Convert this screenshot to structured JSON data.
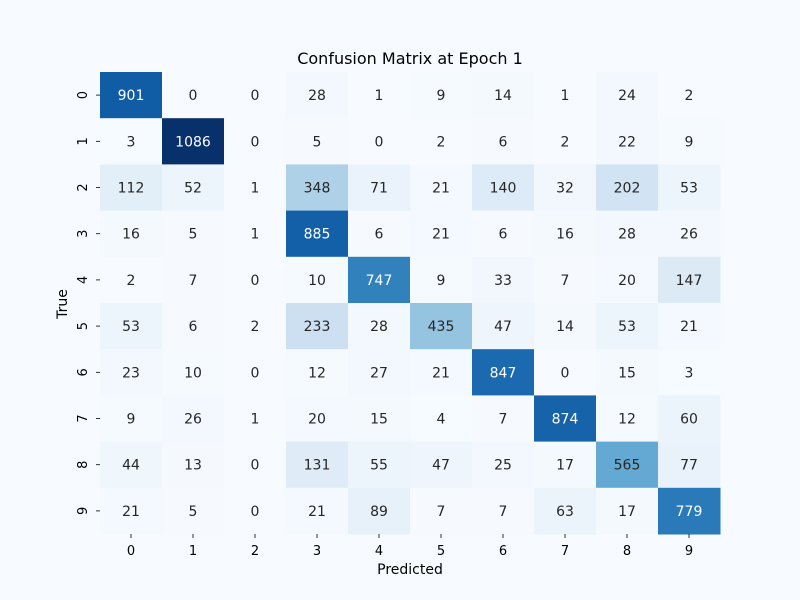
{
  "chart_data": {
    "type": "heatmap",
    "title": "Confusion Matrix at Epoch 1",
    "xlabel": "Predicted",
    "ylabel": "True",
    "x_categories": [
      "0",
      "1",
      "2",
      "3",
      "4",
      "5",
      "6",
      "7",
      "8",
      "9"
    ],
    "y_categories": [
      "0",
      "1",
      "2",
      "3",
      "4",
      "5",
      "6",
      "7",
      "8",
      "9"
    ],
    "values": [
      [
        901,
        0,
        0,
        28,
        1,
        9,
        14,
        1,
        24,
        2
      ],
      [
        3,
        1086,
        0,
        5,
        0,
        2,
        6,
        2,
        22,
        9
      ],
      [
        112,
        52,
        1,
        348,
        71,
        21,
        140,
        32,
        202,
        53
      ],
      [
        16,
        5,
        1,
        885,
        6,
        21,
        6,
        16,
        28,
        26
      ],
      [
        2,
        7,
        0,
        10,
        747,
        9,
        33,
        7,
        20,
        147
      ],
      [
        53,
        6,
        2,
        233,
        28,
        435,
        47,
        14,
        53,
        21
      ],
      [
        23,
        10,
        0,
        12,
        27,
        21,
        847,
        0,
        15,
        3
      ],
      [
        9,
        26,
        1,
        20,
        15,
        4,
        7,
        874,
        12,
        60
      ],
      [
        44,
        13,
        0,
        131,
        55,
        47,
        25,
        17,
        565,
        77
      ],
      [
        21,
        5,
        0,
        21,
        89,
        7,
        7,
        63,
        17,
        779
      ]
    ],
    "colormap": "Blues",
    "value_range": [
      0,
      1086
    ],
    "annotated": true,
    "colorbar": false,
    "grid": false
  },
  "colors": {
    "background": "#f7fbff",
    "text_dark": "#262626",
    "text_light": "#ffffff"
  }
}
